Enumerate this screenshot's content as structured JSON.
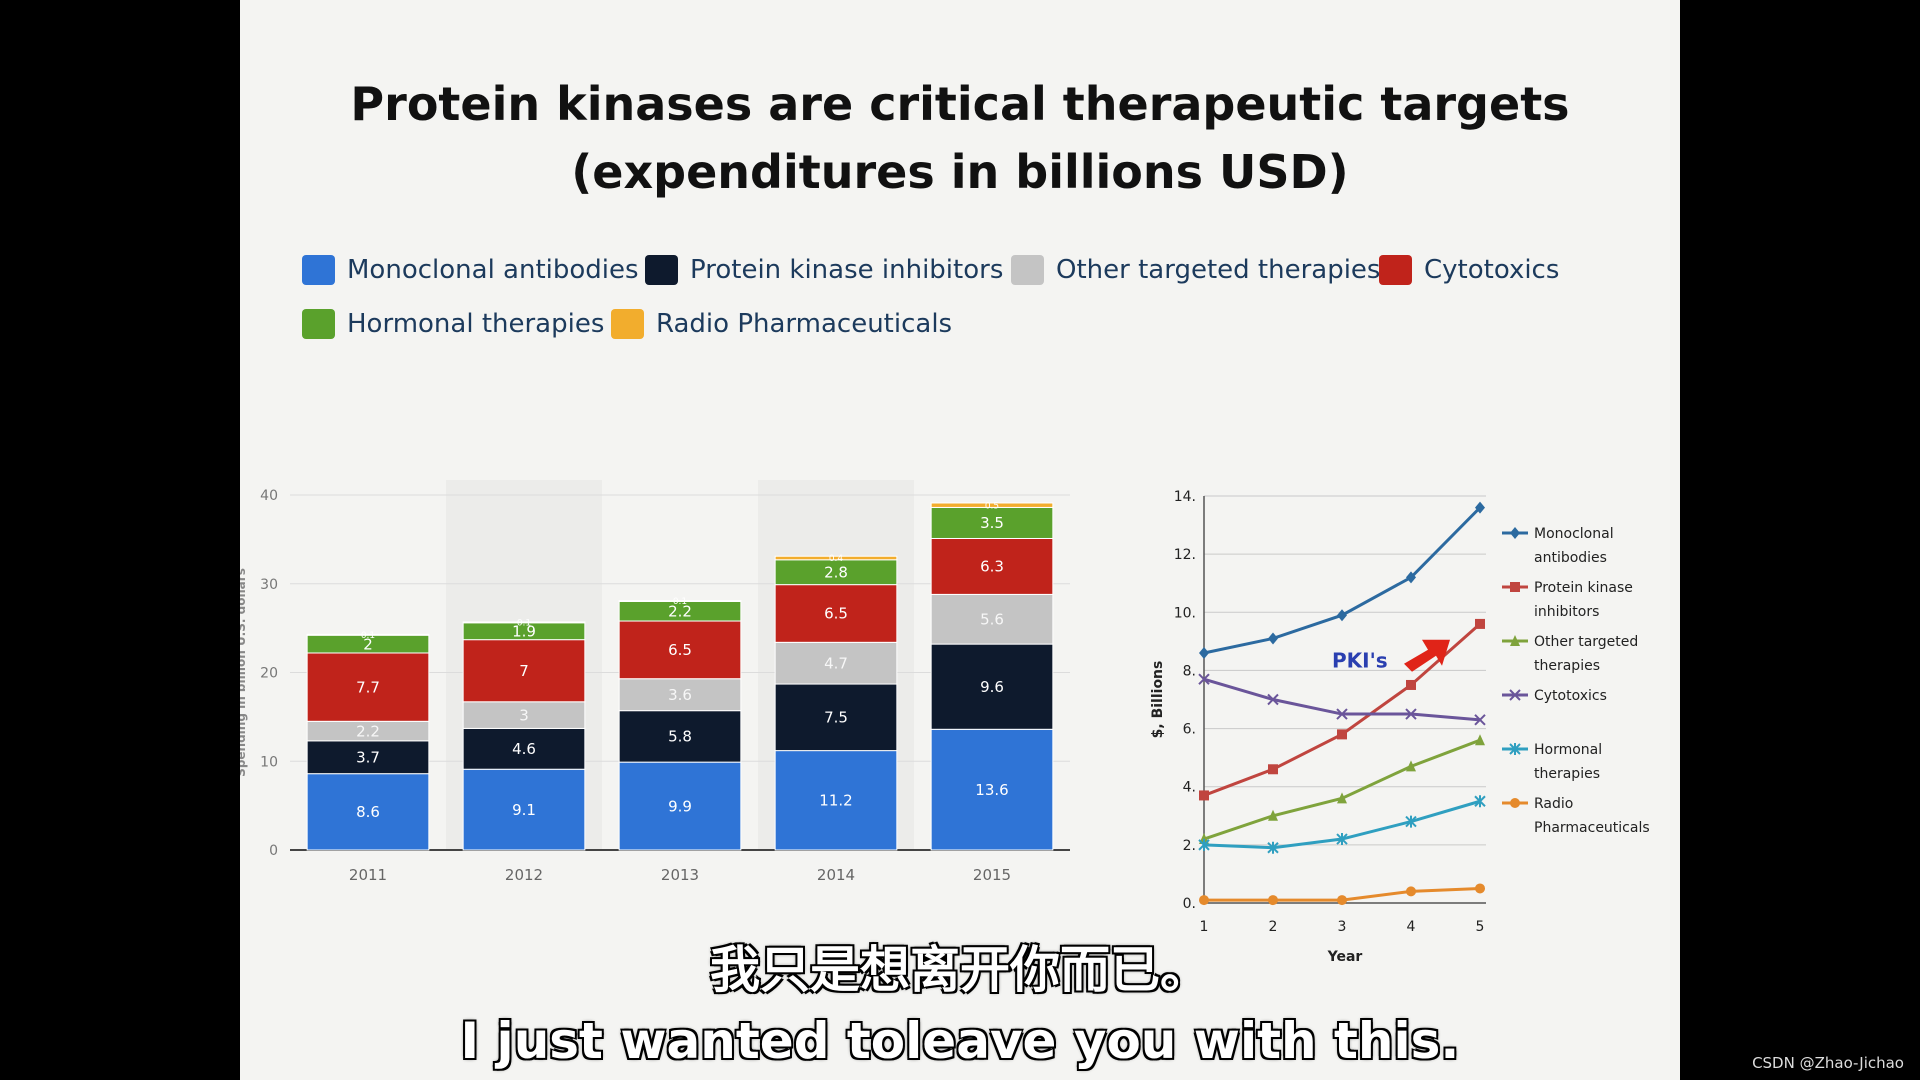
{
  "slide": {
    "title_line1": "Protein kinases are critical therapeutic targets",
    "title_line2": "(expenditures in billions USD)"
  },
  "legend": [
    {
      "label": "Monoclonal antibodies",
      "color": "#2f74d6"
    },
    {
      "label": "Protein kinase inhibitors",
      "color": "#0e1a2d"
    },
    {
      "label": "Other targeted therapies",
      "color": "#c4c4c4"
    },
    {
      "label": "Cytotoxics",
      "color": "#c0231b"
    },
    {
      "label": "Hormonal therapies",
      "color": "#5aa12c"
    },
    {
      "label": "Radio Pharmaceuticals",
      "color": "#f2ad2d"
    }
  ],
  "chart_data": [
    {
      "type": "bar",
      "stacked": true,
      "categories": [
        "2011",
        "2012",
        "2013",
        "2014",
        "2015"
      ],
      "ylabel": "Spending in billion U.S. dollars",
      "ylim": [
        0,
        40
      ],
      "yticks": [
        "0",
        "10",
        "20",
        "30",
        "40"
      ],
      "grid": true,
      "series": [
        {
          "name": "Monoclonal antibodies",
          "color": "#2f74d6",
          "values": [
            8.6,
            9.1,
            9.9,
            11.2,
            13.6
          ],
          "labels": [
            "8.6",
            "9.1",
            "9.9",
            "11.2",
            "13.6"
          ]
        },
        {
          "name": "Protein kinase inhibitors",
          "color": "#0e1a2d",
          "values": [
            3.7,
            4.6,
            5.8,
            7.5,
            9.6
          ],
          "labels": [
            "3.7",
            "4.6",
            "5.8",
            "7.5",
            "9.6"
          ]
        },
        {
          "name": "Other targeted therapies",
          "color": "#c4c4c4",
          "values": [
            2.2,
            3,
            3.6,
            4.7,
            5.6
          ],
          "labels": [
            "2.2",
            "3",
            "3.6",
            "4.7",
            "5.6"
          ]
        },
        {
          "name": "Cytotoxics",
          "color": "#c0231b",
          "values": [
            7.7,
            7,
            6.5,
            6.5,
            6.3
          ],
          "labels": [
            "7.7",
            "7",
            "6.5",
            "6.5",
            "6.3"
          ]
        },
        {
          "name": "Hormonal therapies",
          "color": "#5aa12c",
          "values": [
            2,
            1.9,
            2.2,
            2.8,
            3.5
          ],
          "labels": [
            "2",
            "1.9",
            "2.2",
            "2.8",
            "3.5"
          ]
        },
        {
          "name": "Radio Pharmaceuticals",
          "color": "#f2ad2d",
          "values": [
            0.1,
            0.1,
            0.1,
            0.4,
            0.5
          ],
          "labels": [
            "0.1",
            "0.1",
            "0.1",
            "0.4",
            "0.5"
          ]
        }
      ]
    },
    {
      "type": "line",
      "x": [
        1,
        2,
        3,
        4,
        5
      ],
      "xticks": [
        "1",
        "2",
        "3",
        "4",
        "5"
      ],
      "xlabel": "Year",
      "ylabel": "$, Billions",
      "ylim": [
        0,
        14
      ],
      "yticks": [
        "0.",
        "2.",
        "4.",
        "6.",
        "8.",
        "10.",
        "12.",
        "14."
      ],
      "grid": true,
      "legend_position": "right",
      "annotation": "PKI's",
      "series": [
        {
          "name_lines": [
            "Monoclonal",
            "antibodies"
          ],
          "color": "#2c6aa0",
          "marker": "diamond",
          "values": [
            8.6,
            9.1,
            9.9,
            11.2,
            13.6
          ]
        },
        {
          "name_lines": [
            "Protein kinase",
            "inhibitors"
          ],
          "color": "#c0453f",
          "marker": "square",
          "values": [
            3.7,
            4.6,
            5.8,
            7.5,
            9.6
          ]
        },
        {
          "name_lines": [
            "Other targeted",
            "therapies"
          ],
          "color": "#7fa33c",
          "marker": "triangle",
          "values": [
            2.2,
            3,
            3.6,
            4.7,
            5.6
          ]
        },
        {
          "name_lines": [
            "Cytotoxics"
          ],
          "color": "#6a559a",
          "marker": "x",
          "values": [
            7.7,
            7,
            6.5,
            6.5,
            6.3
          ]
        },
        {
          "name_lines": [
            "Hormonal",
            "therapies"
          ],
          "color": "#2f9fc0",
          "marker": "star",
          "values": [
            2,
            1.9,
            2.2,
            2.8,
            3.5
          ]
        },
        {
          "name_lines": [
            "Radio",
            "Pharmaceuticals"
          ],
          "color": "#e58a2c",
          "marker": "circle",
          "values": [
            0.1,
            0.1,
            0.1,
            0.4,
            0.5
          ]
        }
      ]
    }
  ],
  "subtitles": {
    "zh": "我只是想离开你而已。",
    "en": "I just wanted toleave you with this."
  },
  "watermark": "CSDN @Zhao-Jichao"
}
